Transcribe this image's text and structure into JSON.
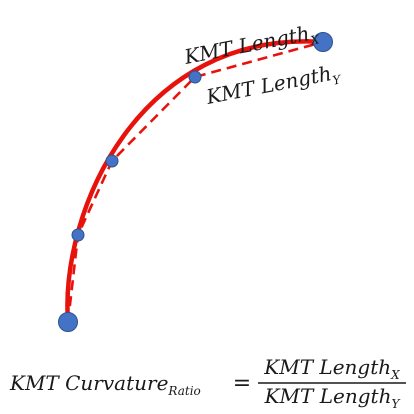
{
  "labels": {
    "length_x": {
      "base": "KMT Length",
      "sub": "X"
    },
    "length_y": {
      "base": "KMT Length",
      "sub": "Y"
    }
  },
  "formula": {
    "lhs_base": "KMT Curvature",
    "lhs_sub": "Ratio",
    "equals": "=",
    "numerator_base": "KMT Length",
    "numerator_sub": "X",
    "denominator_base": "KMT Length",
    "denominator_sub": "Y"
  },
  "colors": {
    "curve": "#e8120c",
    "point_fill": "#4472c4",
    "point_stroke": "#2f528f",
    "text": "#1a1a1a"
  }
}
